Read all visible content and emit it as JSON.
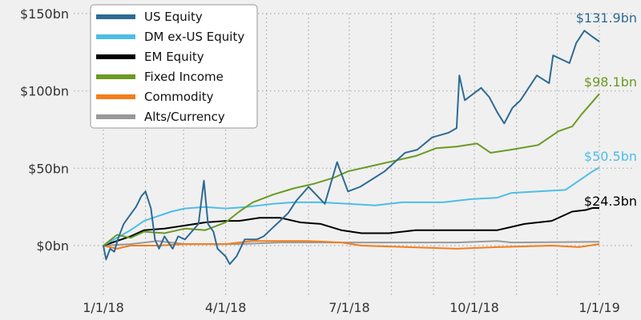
{
  "chart_data": {
    "type": "line",
    "title": "",
    "xlabel": "",
    "ylabel": "",
    "x_units": "days since 1/1/18",
    "xlim": [
      0,
      365
    ],
    "ylim": [
      -20,
      150
    ],
    "grid": true,
    "legend_position": "top-left",
    "x_ticks": [
      {
        "day": 0,
        "label": "1/1/18"
      },
      {
        "day": 90,
        "label": "4/1/18"
      },
      {
        "day": 181,
        "label": "7/1/18"
      },
      {
        "day": 273,
        "label": "10/1/18"
      },
      {
        "day": 365,
        "label": "1/1/19"
      }
    ],
    "y_ticks": [
      {
        "value": 0,
        "label": "$0bn"
      },
      {
        "value": 50,
        "label": "$50bn"
      },
      {
        "value": 100,
        "label": "$100bn"
      },
      {
        "value": 150,
        "label": "$150bn"
      }
    ],
    "series": [
      {
        "name": "US Equity",
        "color": "#2e6b94",
        "end_label": "$131.9bn",
        "points": [
          [
            0,
            0
          ],
          [
            2,
            -9
          ],
          [
            5,
            -2
          ],
          [
            8,
            -4
          ],
          [
            11,
            5
          ],
          [
            15,
            14
          ],
          [
            19,
            19
          ],
          [
            24,
            25
          ],
          [
            28,
            32
          ],
          [
            31,
            35
          ],
          [
            35,
            24
          ],
          [
            38,
            4
          ],
          [
            41,
            -2
          ],
          [
            45,
            6
          ],
          [
            51,
            -2
          ],
          [
            55,
            6
          ],
          [
            60,
            4
          ],
          [
            70,
            14
          ],
          [
            74,
            42
          ],
          [
            77,
            14
          ],
          [
            81,
            9
          ],
          [
            84,
            -2
          ],
          [
            90,
            -7
          ],
          [
            93,
            -12
          ],
          [
            98,
            -7
          ],
          [
            104,
            4
          ],
          [
            113,
            4
          ],
          [
            118,
            6
          ],
          [
            124,
            11
          ],
          [
            130,
            16
          ],
          [
            136,
            21
          ],
          [
            142,
            29
          ],
          [
            148,
            35
          ],
          [
            151,
            38
          ],
          [
            163,
            27
          ],
          [
            172,
            54
          ],
          [
            180,
            35
          ],
          [
            189,
            38
          ],
          [
            198,
            43
          ],
          [
            207,
            48
          ],
          [
            222,
            60
          ],
          [
            231,
            62
          ],
          [
            242,
            70
          ],
          [
            254,
            73
          ],
          [
            260,
            76
          ],
          [
            262,
            110
          ],
          [
            266,
            94
          ],
          [
            278,
            102
          ],
          [
            284,
            96
          ],
          [
            290,
            86
          ],
          [
            295,
            79
          ],
          [
            301,
            89
          ],
          [
            307,
            94
          ],
          [
            313,
            102
          ],
          [
            319,
            110
          ],
          [
            328,
            105
          ],
          [
            331,
            123
          ],
          [
            343,
            118
          ],
          [
            348,
            131
          ],
          [
            354,
            139
          ],
          [
            360,
            135
          ],
          [
            365,
            131.9
          ]
        ]
      },
      {
        "name": "DM ex-US Equity",
        "color": "#4dbde9",
        "end_label": "$50.5bn",
        "points": [
          [
            0,
            0
          ],
          [
            10,
            5
          ],
          [
            20,
            10
          ],
          [
            30,
            16
          ],
          [
            40,
            19
          ],
          [
            50,
            22
          ],
          [
            60,
            24
          ],
          [
            75,
            25
          ],
          [
            90,
            24
          ],
          [
            105,
            25
          ],
          [
            125,
            27
          ],
          [
            140,
            28
          ],
          [
            160,
            28
          ],
          [
            180,
            27
          ],
          [
            200,
            26
          ],
          [
            220,
            28
          ],
          [
            250,
            28
          ],
          [
            270,
            30
          ],
          [
            290,
            31
          ],
          [
            300,
            34
          ],
          [
            320,
            35
          ],
          [
            340,
            36
          ],
          [
            350,
            42
          ],
          [
            360,
            48
          ],
          [
            365,
            50.5
          ]
        ]
      },
      {
        "name": "EM Equity",
        "color": "#000000",
        "end_label": "$24.3bn",
        "points": [
          [
            0,
            0
          ],
          [
            10,
            3
          ],
          [
            20,
            6
          ],
          [
            30,
            10
          ],
          [
            45,
            11
          ],
          [
            60,
            13
          ],
          [
            75,
            15
          ],
          [
            90,
            16
          ],
          [
            100,
            16
          ],
          [
            115,
            18
          ],
          [
            130,
            18
          ],
          [
            145,
            15
          ],
          [
            160,
            14
          ],
          [
            175,
            10
          ],
          [
            190,
            8
          ],
          [
            210,
            8
          ],
          [
            230,
            10
          ],
          [
            270,
            10
          ],
          [
            290,
            10
          ],
          [
            310,
            14
          ],
          [
            330,
            16
          ],
          [
            345,
            22
          ],
          [
            355,
            23
          ],
          [
            360,
            24.3
          ],
          [
            365,
            24.3
          ]
        ]
      },
      {
        "name": "Fixed Income",
        "color": "#6a9a23",
        "end_label": "$98.1bn",
        "points": [
          [
            0,
            0
          ],
          [
            10,
            7
          ],
          [
            20,
            5
          ],
          [
            30,
            9
          ],
          [
            45,
            8
          ],
          [
            60,
            11
          ],
          [
            75,
            10
          ],
          [
            90,
            15
          ],
          [
            100,
            22
          ],
          [
            110,
            28
          ],
          [
            125,
            33
          ],
          [
            140,
            37
          ],
          [
            155,
            40
          ],
          [
            170,
            44
          ],
          [
            180,
            48
          ],
          [
            200,
            52
          ],
          [
            215,
            55
          ],
          [
            230,
            58
          ],
          [
            245,
            63
          ],
          [
            260,
            64
          ],
          [
            275,
            66
          ],
          [
            285,
            60
          ],
          [
            300,
            62
          ],
          [
            320,
            65
          ],
          [
            335,
            74
          ],
          [
            345,
            77
          ],
          [
            352,
            85
          ],
          [
            360,
            93
          ],
          [
            365,
            98.1
          ]
        ]
      },
      {
        "name": "Commodity",
        "color": "#f47d1a",
        "end_label": "",
        "points": [
          [
            0,
            0
          ],
          [
            10,
            -2
          ],
          [
            20,
            0
          ],
          [
            40,
            0
          ],
          [
            60,
            1
          ],
          [
            90,
            1
          ],
          [
            100,
            2
          ],
          [
            110,
            3
          ],
          [
            150,
            3
          ],
          [
            175,
            2
          ],
          [
            190,
            0
          ],
          [
            260,
            -2
          ],
          [
            290,
            -1
          ],
          [
            330,
            0
          ],
          [
            350,
            -1
          ],
          [
            365,
            1
          ]
        ]
      },
      {
        "name": "Alts/Currency",
        "color": "#999999",
        "end_label": "",
        "points": [
          [
            0,
            0
          ],
          [
            20,
            1
          ],
          [
            40,
            3
          ],
          [
            60,
            1
          ],
          [
            100,
            1
          ],
          [
            130,
            2
          ],
          [
            175,
            2
          ],
          [
            260,
            2
          ],
          [
            290,
            3
          ],
          [
            300,
            2
          ],
          [
            365,
            2.5
          ]
        ]
      }
    ]
  }
}
